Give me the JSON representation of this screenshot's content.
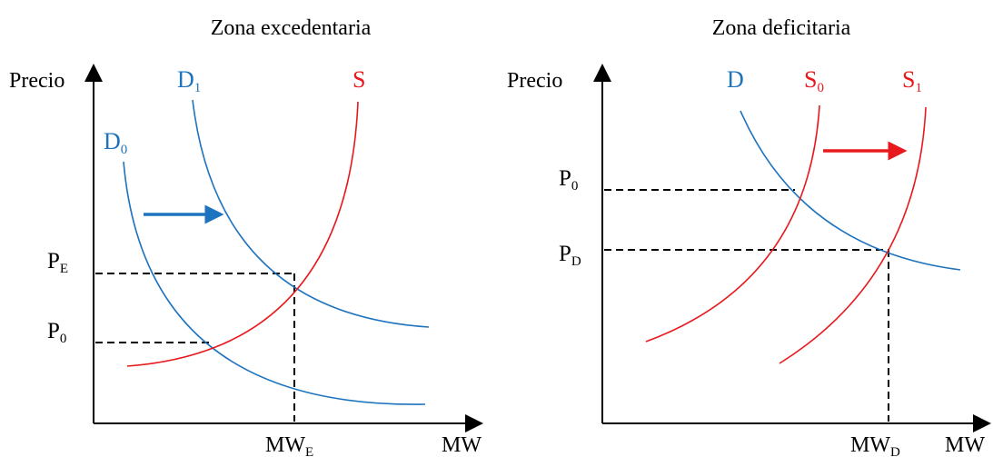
{
  "colors": {
    "demand": "#1E73BE",
    "supply": "#E8191D",
    "axis": "#000000",
    "guide": "#000000"
  },
  "left_panel": {
    "title": "Zona excedentaria",
    "y_axis_label": "Precio",
    "x_axis_label": "MW",
    "curves": {
      "d0": {
        "main": "D",
        "sub": "0"
      },
      "d1": {
        "main": "D",
        "sub": "1"
      },
      "s": {
        "main": "S"
      }
    },
    "prices": {
      "pe": {
        "main": "P",
        "sub": "E"
      },
      "p0": {
        "main": "P",
        "sub": "0"
      }
    },
    "quantity": {
      "main": "MW",
      "sub": "E"
    },
    "shift_arrow": "arrow-right-icon"
  },
  "right_panel": {
    "title": "Zona deficitaria",
    "y_axis_label": "Precio",
    "x_axis_label": "MW",
    "curves": {
      "d": {
        "main": "D"
      },
      "s0": {
        "main": "S",
        "sub": "0"
      },
      "s1": {
        "main": "S",
        "sub": "1"
      }
    },
    "prices": {
      "p0": {
        "main": "P",
        "sub": "0"
      },
      "pd": {
        "main": "P",
        "sub": "D"
      }
    },
    "quantity": {
      "main": "MW",
      "sub": "D"
    },
    "shift_arrow": "arrow-right-icon"
  }
}
